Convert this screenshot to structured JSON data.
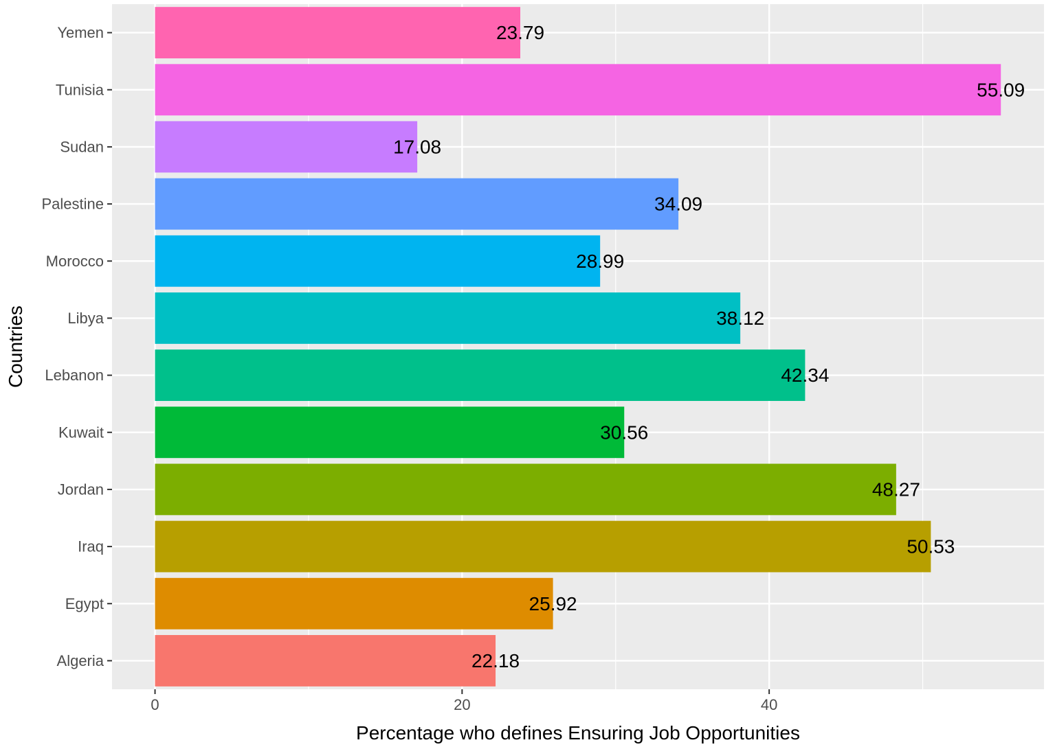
{
  "chart_data": {
    "type": "bar",
    "orientation": "horizontal",
    "xlabel": "Percentage who defines Ensuring Job Opportunities",
    "ylabel": "Countries",
    "xlim": [
      -2.8,
      57.9
    ],
    "x_ticks": [
      0,
      20,
      40
    ],
    "grid": true,
    "legend": "none",
    "categories": [
      "Algeria",
      "Egypt",
      "Iraq",
      "Jordan",
      "Kuwait",
      "Lebanon",
      "Libya",
      "Morocco",
      "Palestine",
      "Sudan",
      "Tunisia",
      "Yemen"
    ],
    "values": [
      22.18,
      25.92,
      50.53,
      48.27,
      30.56,
      42.34,
      38.12,
      28.99,
      34.09,
      17.08,
      55.09,
      23.79
    ],
    "data_labels": [
      "22.18",
      "25.92",
      "50.53",
      "48.27",
      "30.56",
      "42.34",
      "38.12",
      "28.99",
      "34.09",
      "17.08",
      "55.09",
      "23.79"
    ],
    "colors": [
      "#F8766D",
      "#DE8C00",
      "#B79F00",
      "#7CAE00",
      "#00BA38",
      "#00C08B",
      "#00BFC4",
      "#00B4F0",
      "#619CFF",
      "#C77CFF",
      "#F564E3",
      "#FF64B0"
    ]
  },
  "theme": {
    "panel_background": "#EBEBEB",
    "grid_color": "#FFFFFF",
    "tick_color": "#333333"
  }
}
